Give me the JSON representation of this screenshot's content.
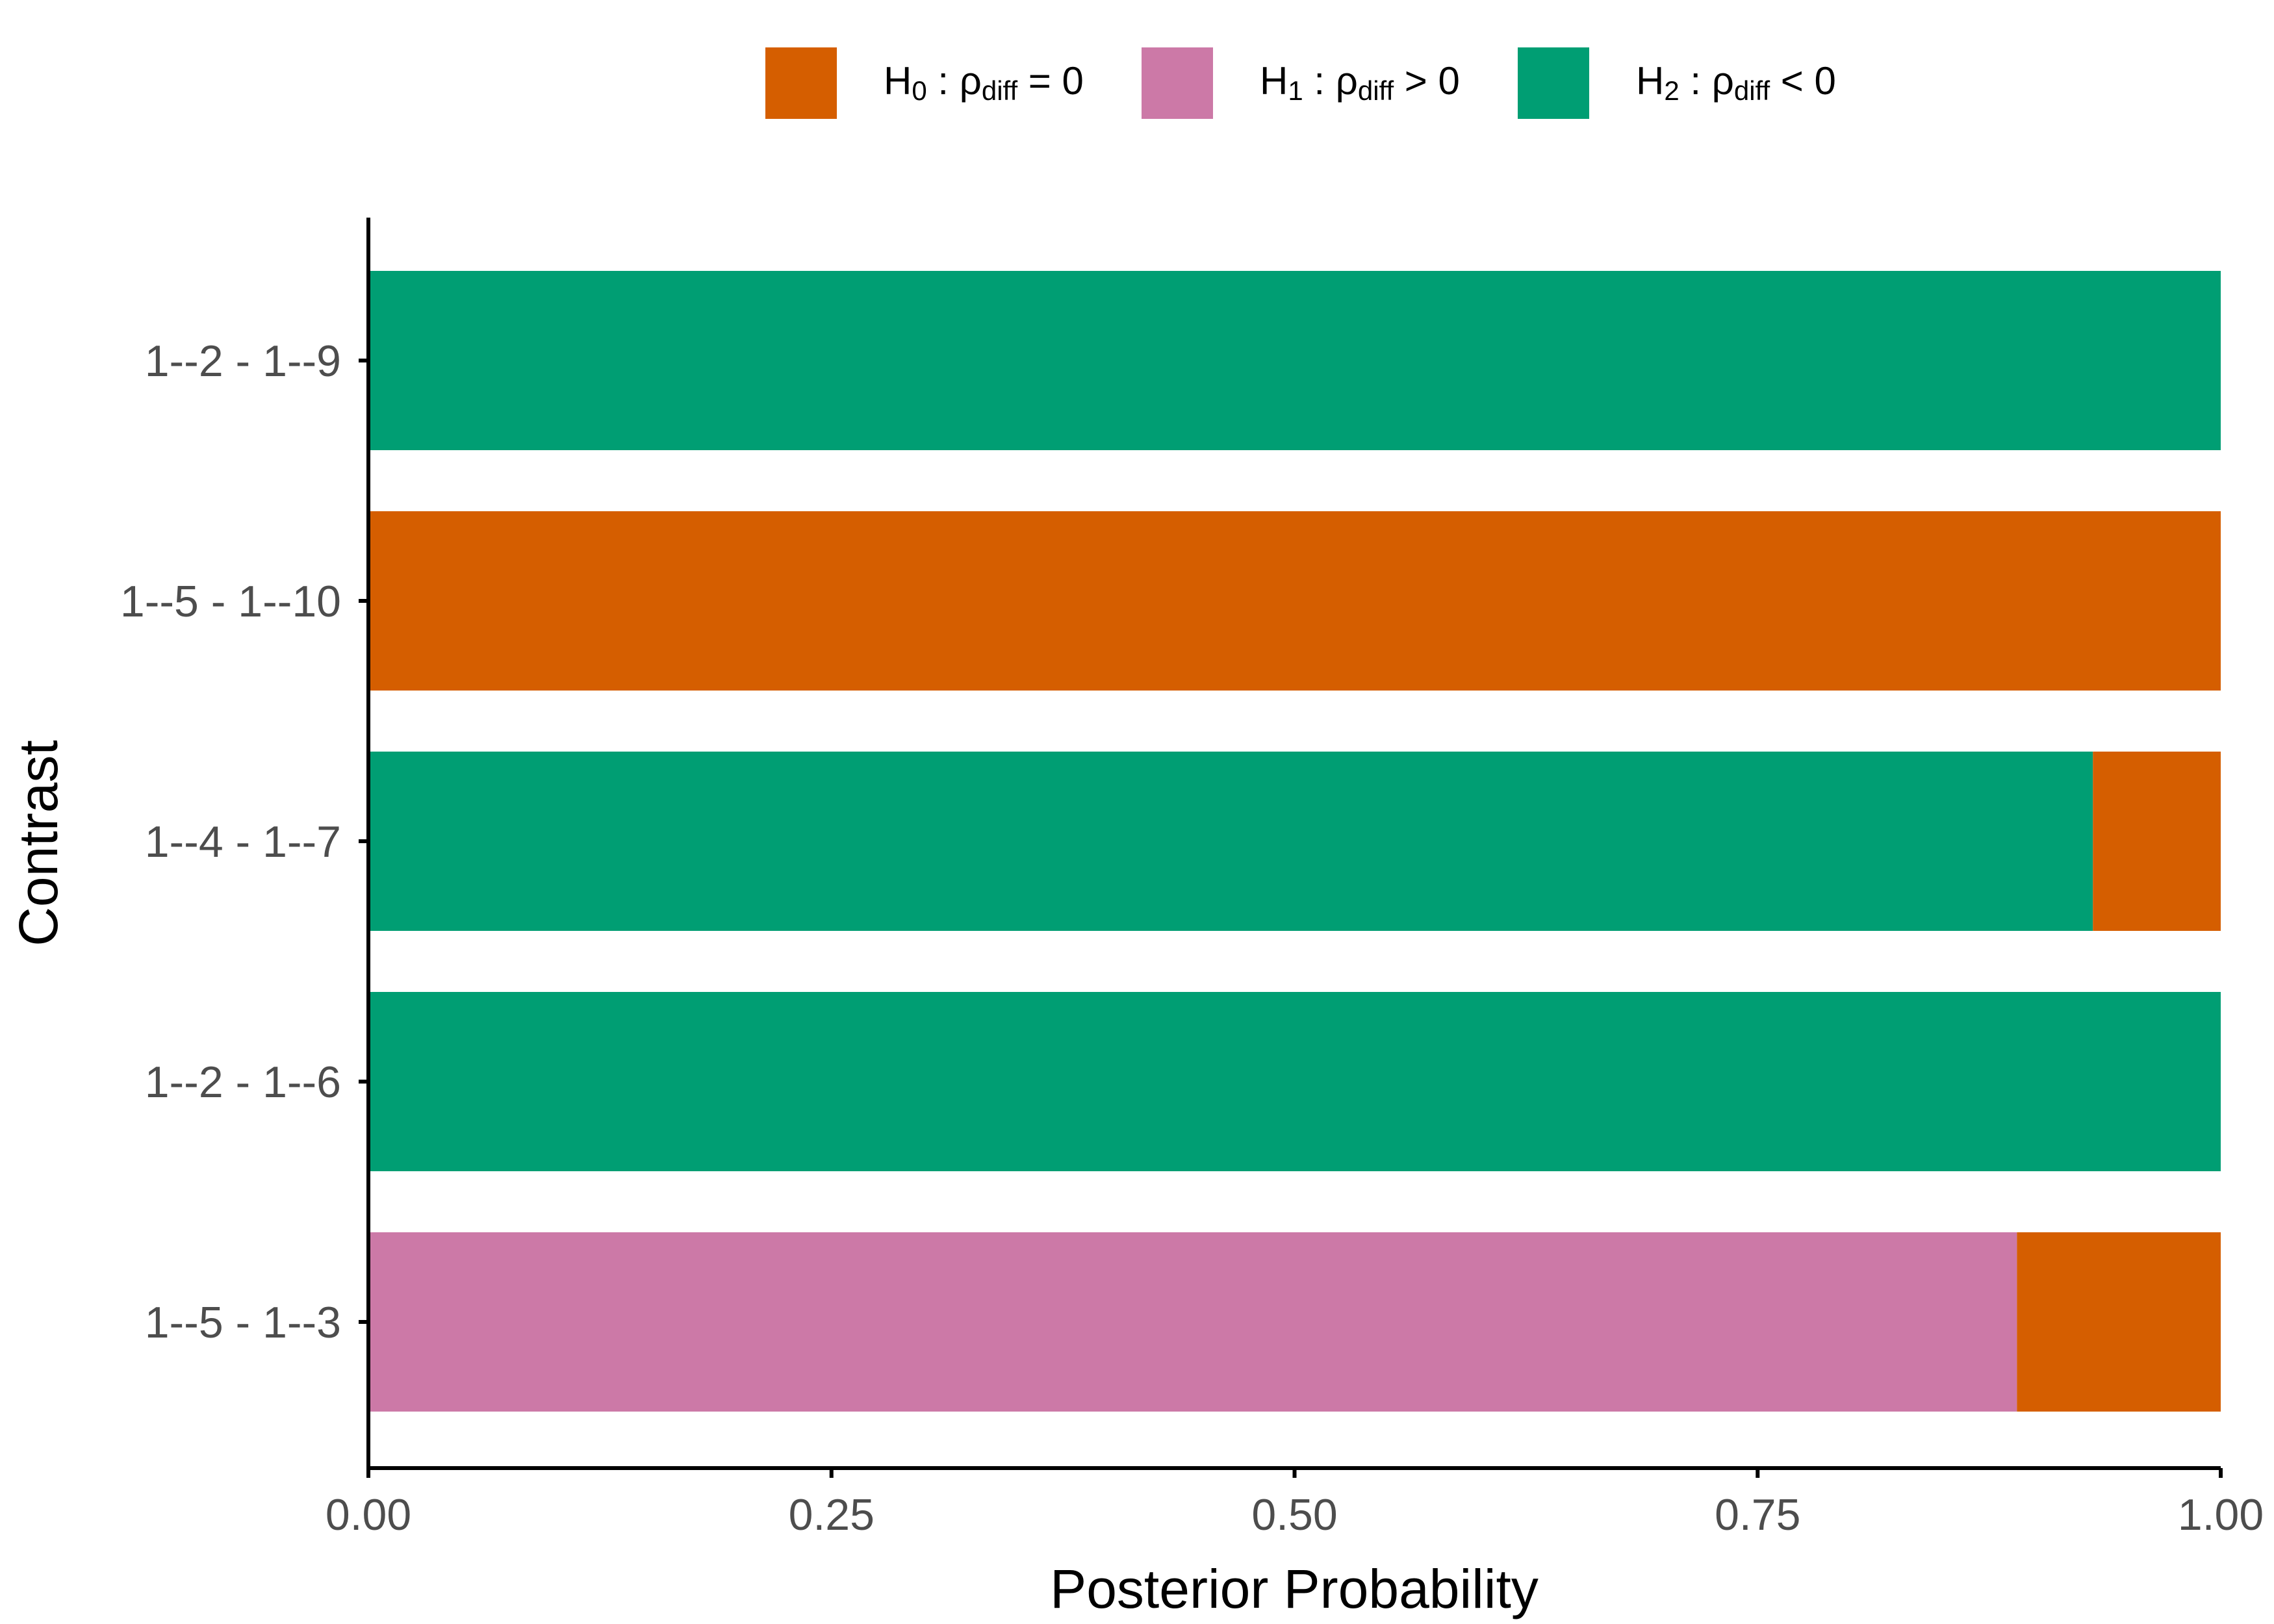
{
  "chart_data": {
    "type": "bar",
    "orientation": "horizontal",
    "stacked": true,
    "xlabel": "Posterior Probability",
    "ylabel": "Contrast",
    "xlim": [
      0,
      1
    ],
    "xticks": [
      "0.00",
      "0.25",
      "0.50",
      "0.75",
      "1.00"
    ],
    "grid": false,
    "legend_position": "top",
    "categories": [
      "1--2 - 1--9",
      "1--5 - 1--10",
      "1--4 - 1--7",
      "1--2 - 1--6",
      "1--5 - 1--3"
    ],
    "series": [
      {
        "key": "H2",
        "legend": {
          "main": "H",
          "sub1": "2",
          "mid": " : ρ",
          "sub2": "diff",
          "tail": " < 0"
        },
        "color": "#009E73",
        "values": [
          1.0,
          0.0,
          0.931,
          1.0,
          0.0
        ]
      },
      {
        "key": "H1",
        "legend": {
          "main": "H",
          "sub1": "1",
          "mid": " : ρ",
          "sub2": "diff",
          "tail": " > 0"
        },
        "color": "#CC79A7",
        "values": [
          0.0,
          0.0,
          0.0,
          0.0,
          0.89
        ]
      },
      {
        "key": "H0",
        "legend": {
          "main": "H",
          "sub1": "0",
          "mid": " : ρ",
          "sub2": "diff",
          "tail": " = 0"
        },
        "color": "#D55E00",
        "values": [
          0.0,
          1.0,
          0.069,
          0.0,
          0.11
        ]
      }
    ],
    "legend_order": [
      "H0",
      "H1",
      "H2"
    ]
  }
}
